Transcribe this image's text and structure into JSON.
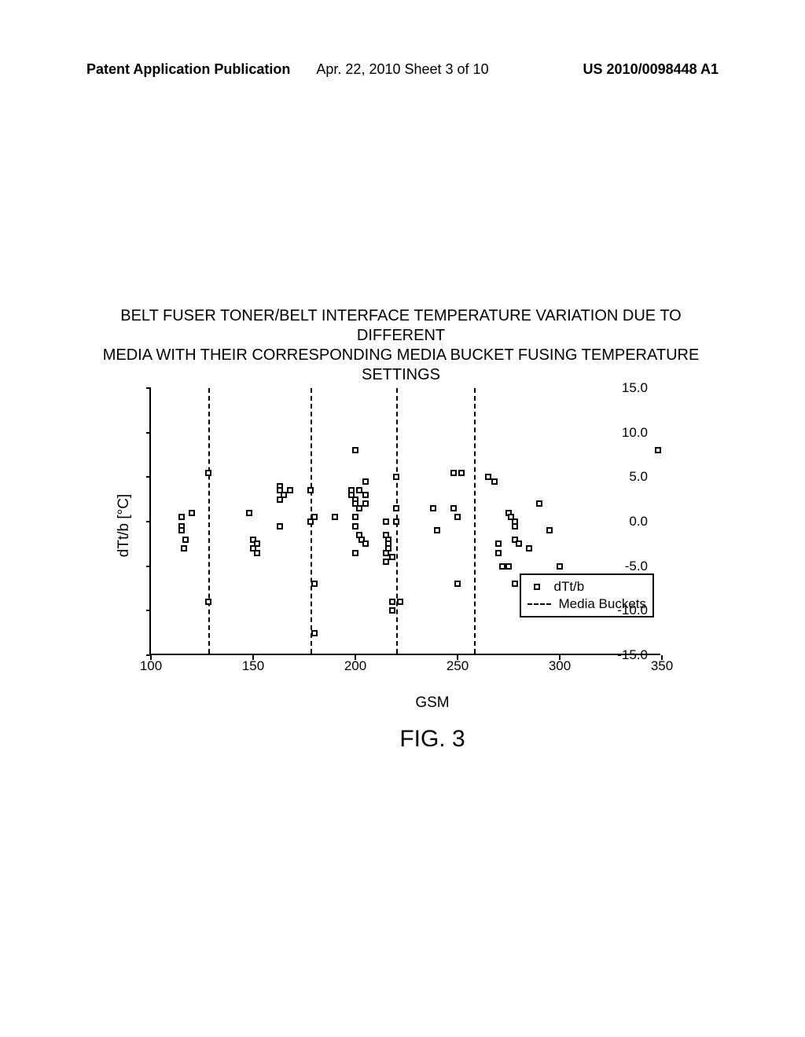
{
  "header": {
    "left": "Patent Application Publication",
    "center": "Apr. 22, 2010  Sheet 3 of 10",
    "right": "US 2010/0098448 A1"
  },
  "chart": {
    "title_line1": "BELT FUSER TONER/BELT INTERFACE TEMPERATURE VARIATION DUE TO DIFFERENT",
    "title_line2": "MEDIA WITH THEIR CORRESPONDING MEDIA BUCKET FUSING TEMPERATURE SETTINGS",
    "ylabel": "dTt/b [°C]",
    "xlabel": "GSM",
    "figure_label": "FIG. 3",
    "xlim": [
      100,
      350
    ],
    "ylim": [
      -15,
      15
    ],
    "yticks": [
      -15.0,
      -10.0,
      -5.0,
      0.0,
      5.0,
      10.0,
      15.0
    ],
    "ytick_labels": [
      "-15.0",
      "-10.0",
      "-5.0",
      "0.0",
      "5.0",
      "10.0",
      "15.0"
    ],
    "xticks": [
      100,
      150,
      200,
      250,
      300,
      350
    ],
    "xtick_labels": [
      "100",
      "150",
      "200",
      "250",
      "300",
      "350"
    ],
    "vlines": [
      128,
      178,
      220,
      258
    ],
    "legend": {
      "series_label": "dTt/b",
      "buckets_label": "Media Buckets"
    },
    "marker_color": "#000000",
    "marker_fill": "#ffffff",
    "background_color": "#ffffff",
    "points": [
      [
        115,
        0.5
      ],
      [
        115,
        -0.5
      ],
      [
        115,
        -1.0
      ],
      [
        117,
        -2.0
      ],
      [
        120,
        1.0
      ],
      [
        116,
        -3.0
      ],
      [
        128,
        5.5
      ],
      [
        128,
        -9.0
      ],
      [
        148,
        1.0
      ],
      [
        150,
        -2.0
      ],
      [
        152,
        -2.5
      ],
      [
        150,
        -3.0
      ],
      [
        152,
        -3.5
      ],
      [
        163,
        4.0
      ],
      [
        163,
        3.5
      ],
      [
        163,
        2.5
      ],
      [
        165,
        3.0
      ],
      [
        168,
        3.5
      ],
      [
        163,
        -0.5
      ],
      [
        178,
        3.5
      ],
      [
        180,
        0.5
      ],
      [
        178,
        0.0
      ],
      [
        180,
        -7.0
      ],
      [
        180,
        -12.5
      ],
      [
        190,
        0.5
      ],
      [
        198,
        3.5
      ],
      [
        198,
        3.0
      ],
      [
        200,
        2.5
      ],
      [
        200,
        2.0
      ],
      [
        202,
        3.5
      ],
      [
        205,
        3.0
      ],
      [
        202,
        1.5
      ],
      [
        205,
        2.0
      ],
      [
        200,
        0.5
      ],
      [
        200,
        -0.5
      ],
      [
        202,
        -1.5
      ],
      [
        203,
        -2.0
      ],
      [
        205,
        -2.5
      ],
      [
        200,
        -3.5
      ],
      [
        200,
        8.0
      ],
      [
        205,
        4.5
      ],
      [
        215,
        0.0
      ],
      [
        215,
        -1.5
      ],
      [
        216,
        -2.0
      ],
      [
        216,
        -2.5
      ],
      [
        216,
        -3.0
      ],
      [
        215,
        -3.5
      ],
      [
        218,
        -4.0
      ],
      [
        215,
        -4.5
      ],
      [
        218,
        -10.0
      ],
      [
        218,
        -9.0
      ],
      [
        220,
        5.0
      ],
      [
        220,
        1.5
      ],
      [
        220,
        0.0
      ],
      [
        222,
        -9.0
      ],
      [
        238,
        1.5
      ],
      [
        240,
        -1.0
      ],
      [
        248,
        5.5
      ],
      [
        248,
        1.5
      ],
      [
        250,
        0.5
      ],
      [
        250,
        -7.0
      ],
      [
        252,
        5.5
      ],
      [
        265,
        5.0
      ],
      [
        268,
        4.5
      ],
      [
        270,
        -2.5
      ],
      [
        270,
        -3.5
      ],
      [
        272,
        -5.0
      ],
      [
        275,
        -5.0
      ],
      [
        275,
        1.0
      ],
      [
        276,
        0.5
      ],
      [
        278,
        0.0
      ],
      [
        278,
        -0.5
      ],
      [
        278,
        -2.0
      ],
      [
        280,
        -2.5
      ],
      [
        278,
        -7.0
      ],
      [
        285,
        -3.0
      ],
      [
        290,
        2.0
      ],
      [
        295,
        -1.0
      ],
      [
        300,
        -5.0
      ],
      [
        348,
        8.0
      ]
    ]
  }
}
